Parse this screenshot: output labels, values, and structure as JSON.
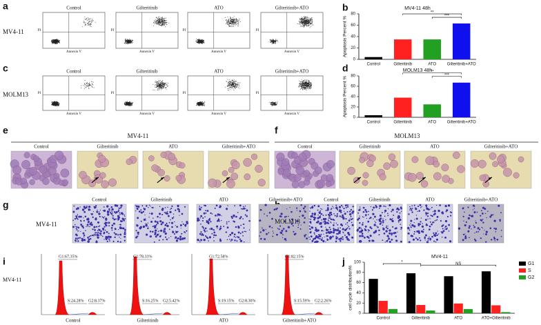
{
  "panel_labels": [
    "a",
    "b",
    "c",
    "d",
    "e",
    "f",
    "g",
    "h",
    "i",
    "j"
  ],
  "conditions": [
    "Control",
    "Gilteritinib",
    "ATO",
    "Gilteritinib+ATO"
  ],
  "cell_lines": [
    "MV4-11",
    "MOLM13"
  ],
  "flow_cytometry": {
    "x_label": "Annexin V",
    "y_label": "PI"
  },
  "cell_cycle_histograms": {
    "phases": [
      [
        "G1:67.35%",
        "S:24.28%",
        "G2:8.37%"
      ],
      [
        "G1:78.33%",
        "S:16.25%",
        "G2:5.42%"
      ],
      [
        "G1:72.58%",
        "S:19.15%",
        "G2:8.30%"
      ],
      [
        "G1:82.15%",
        "S:15.59%",
        "G2:2.26%"
      ]
    ]
  },
  "chart_data": [
    {
      "type": "bar",
      "title": "MV4-11  48h",
      "y_label": "Apoptosis Percent %",
      "categories": [
        "Control",
        "Gilteritinib",
        "ATO",
        "Gilteritinib+ATO"
      ],
      "values": [
        4,
        35,
        35,
        63
      ],
      "colors": [
        "#000000",
        "#ff2020",
        "#22a022",
        "#1010ee"
      ],
      "ylim": [
        0,
        80
      ],
      "yticks": [
        0,
        20,
        40,
        60,
        80
      ],
      "annotations": [
        "**",
        "***"
      ]
    },
    {
      "type": "bar",
      "title": "MOLM13  48h",
      "y_label": "Apoptosis Percent %",
      "categories": [
        "Control",
        "Gilteritinib",
        "ATO",
        "Gilteritinib+ATO"
      ],
      "values": [
        4,
        38,
        25,
        67
      ],
      "colors": [
        "#000000",
        "#ff2020",
        "#22a022",
        "#1010ee"
      ],
      "ylim": [
        0,
        80
      ],
      "yticks": [
        0,
        20,
        40,
        60,
        80
      ],
      "annotations": [
        "**",
        "***"
      ]
    },
    {
      "type": "bar",
      "title": "MV4-11",
      "y_label": "cell cycle distribution%",
      "categories": [
        "Control",
        "Gilteritinib",
        "ATO",
        "ATO+Gilteritinib"
      ],
      "series": [
        {
          "name": "G1",
          "color": "#000000",
          "values": [
            67.35,
            78.33,
            72.58,
            82.15
          ]
        },
        {
          "name": "S",
          "color": "#ff2020",
          "values": [
            24.28,
            16.25,
            19.15,
            15.59
          ]
        },
        {
          "name": "G2",
          "color": "#22a022",
          "values": [
            8.37,
            5.42,
            8.3,
            2.26
          ]
        }
      ],
      "ylim": [
        0,
        100
      ],
      "yticks": [
        0,
        20,
        40,
        60,
        80,
        100
      ],
      "annotations": [
        "*",
        "NS"
      ]
    }
  ]
}
